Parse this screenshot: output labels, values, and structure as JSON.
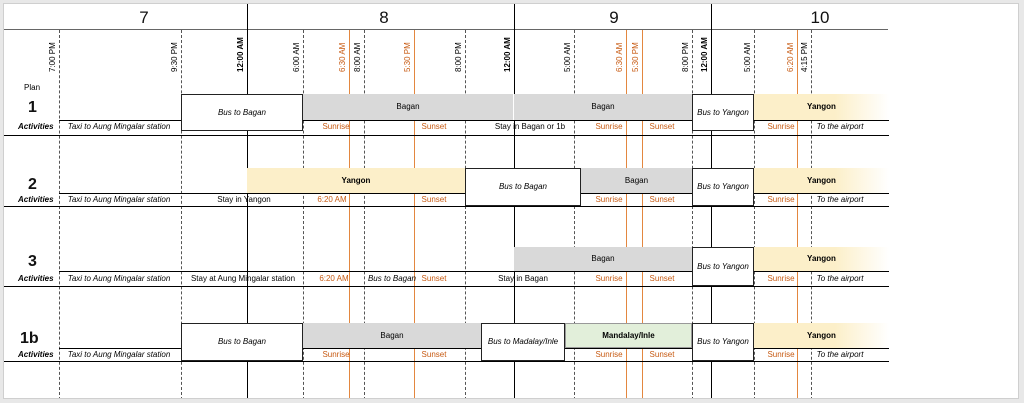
{
  "days": [
    "7",
    "8",
    "9",
    "10"
  ],
  "time_labels": [
    "7:00 PM",
    "9:30 PM",
    "12:00 AM",
    "6:00 AM",
    "6:30 AM",
    "8:00 AM",
    "5:30 PM",
    "8:00 PM",
    "12:00 AM",
    "5:00 AM",
    "6:30 AM",
    "5:30 PM",
    "8:00 PM",
    "12:00 AM",
    "5:00 AM",
    "6:20 AM",
    "4:15 PM"
  ],
  "plan_header": "Plan",
  "activities_label": "Activities",
  "plans": [
    {
      "id": "1",
      "bars": [
        "Bus to Bagan",
        "Bagan",
        "Bagan",
        "Bus to Yangon",
        "Yangon"
      ],
      "activities": [
        "Taxi to Aung Mingalar station",
        "Sunrise",
        "Sunset",
        "Stay in Bagan or 1b",
        "Sunrise",
        "Sunset",
        "Sunrise",
        "To the airport"
      ]
    },
    {
      "id": "2",
      "bars": [
        "Yangon",
        "Bus to Bagan",
        "Bagan",
        "Bus to Yangon",
        "Yangon"
      ],
      "activities": [
        "Taxi to Aung Mingalar station",
        "Stay in Yangon",
        "6:20 AM",
        "Sunset",
        "Sunrise",
        "Sunset",
        "Sunrise",
        "To the airport"
      ]
    },
    {
      "id": "3",
      "bars": [
        "Bagan",
        "Bus to Yangon",
        "Yangon"
      ],
      "activities": [
        "Taxi to Aung Mingalar station",
        "Stay at Aung Mingalar station",
        "6:20 AM",
        "Bus to Bagan",
        "Sunset",
        "Stay in Bagan",
        "Sunrise",
        "Sunset",
        "Sunrise",
        "To the airport"
      ]
    },
    {
      "id": "1b",
      "bars": [
        "Bus to Bagan",
        "Bagan",
        "Bus to Madalay/Inle",
        "Mandalay/Inle",
        "Bus to Yangon",
        "Yangon"
      ],
      "activities": [
        "Taxi to Aung Mingalar station",
        "Sunrise",
        "Sunset",
        "Sunrise",
        "Sunset",
        "Sunrise",
        "To the airport"
      ]
    }
  ]
}
